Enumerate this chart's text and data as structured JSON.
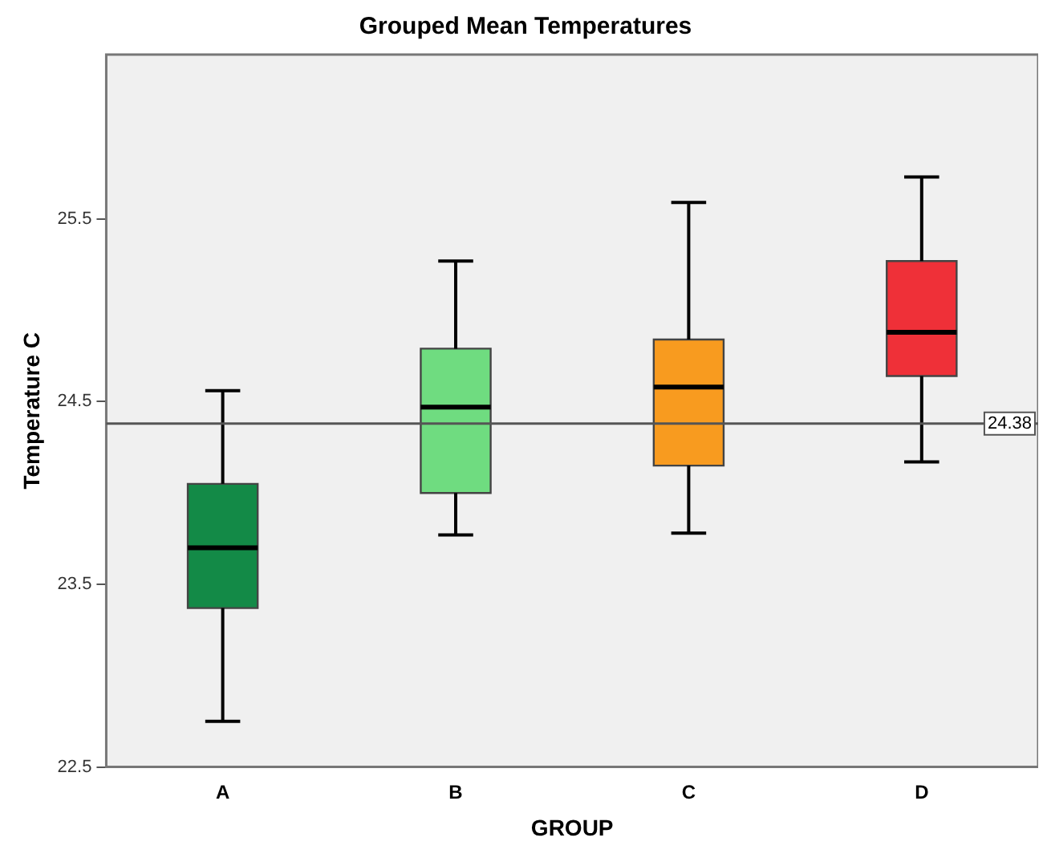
{
  "chart_data": {
    "type": "box",
    "title": "Grouped Mean Temperatures",
    "xlabel": "GROUP",
    "ylabel": "Temperature C",
    "categories": [
      "A",
      "B",
      "C",
      "D"
    ],
    "colors": [
      "#138a47",
      "#6fdc80",
      "#f89b1f",
      "#ef3038"
    ],
    "boxes": [
      {
        "low": 22.75,
        "q1": 23.37,
        "median": 23.7,
        "q3": 24.05,
        "high": 24.56
      },
      {
        "low": 23.77,
        "q1": 24.0,
        "median": 24.47,
        "q3": 24.79,
        "high": 25.27
      },
      {
        "low": 23.78,
        "q1": 24.15,
        "median": 24.58,
        "q3": 24.84,
        "high": 25.59
      },
      {
        "low": 24.17,
        "q1": 24.64,
        "median": 24.88,
        "q3": 25.27,
        "high": 25.73
      }
    ],
    "ylim": [
      22.5,
      26.4
    ],
    "yticks": [
      22.5,
      23.5,
      24.5,
      25.5
    ],
    "ref_lines": [
      {
        "axis": "y",
        "value": 24.38,
        "label": "24.38"
      }
    ],
    "grid": false,
    "legend": false
  }
}
